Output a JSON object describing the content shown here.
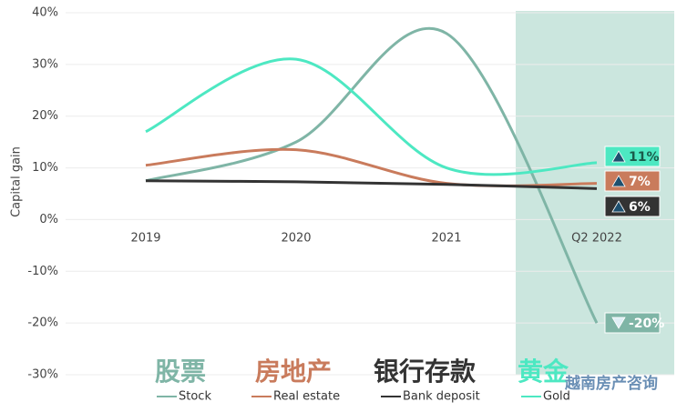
{
  "chart_data": {
    "type": "line",
    "y_label": "Capital gain",
    "categories": [
      "2019",
      "2020",
      "2021",
      "Q2 2022"
    ],
    "series": [
      {
        "name": "Stock",
        "name_zh": "股票",
        "color": "#7fb5a6",
        "values": [
          7.5,
          15,
          36,
          -20
        ],
        "value_labels": [
          null,
          null,
          null,
          "-20%"
        ]
      },
      {
        "name": "Real estate",
        "name_zh": "房地产",
        "color": "#c97b5c",
        "values": [
          10.5,
          13.5,
          7,
          7
        ],
        "value_labels": [
          null,
          null,
          null,
          "7%"
        ]
      },
      {
        "name": "Bank deposit",
        "name_zh": "银行存款",
        "color": "#333333",
        "values": [
          7.5,
          7.3,
          6.8,
          6
        ],
        "value_labels": [
          null,
          null,
          null,
          "6%"
        ]
      },
      {
        "name": "Gold",
        "name_zh": "黄金",
        "color": "#4de8c2",
        "values": [
          17,
          31,
          10,
          11
        ],
        "value_labels": [
          null,
          null,
          null,
          "11%"
        ]
      }
    ],
    "ylim": [
      -30,
      40
    ],
    "yticks": [
      {
        "value": -30,
        "label": "-30%"
      },
      {
        "value": -20,
        "label": "-20%"
      },
      {
        "value": -10,
        "label": "-10%"
      },
      {
        "value": 0,
        "label": "0%"
      },
      {
        "value": 10,
        "label": "10%"
      },
      {
        "value": 20,
        "label": "20%"
      },
      {
        "value": 30,
        "label": "30%"
      },
      {
        "value": 40,
        "label": "40%"
      }
    ],
    "grid": true,
    "watermark": "越南房产咨询"
  }
}
